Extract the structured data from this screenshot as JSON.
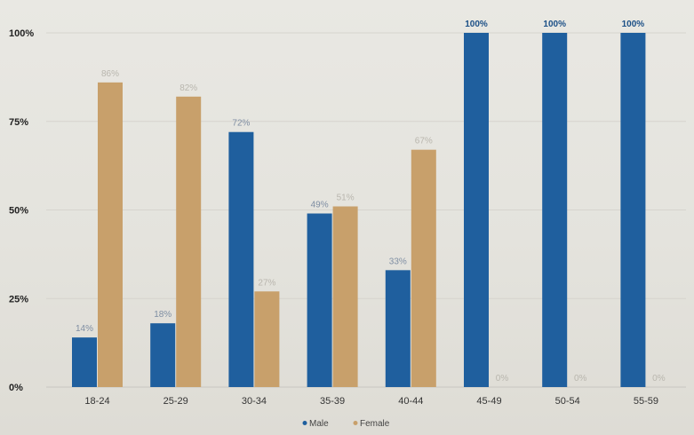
{
  "chart_data": {
    "type": "bar",
    "categories": [
      "18-24",
      "25-29",
      "30-34",
      "35-39",
      "40-44",
      "45-49",
      "50-54",
      "55-59"
    ],
    "series": [
      {
        "name": "Male",
        "values": [
          14,
          18,
          72,
          49,
          33,
          100,
          100,
          100
        ],
        "labels": [
          "14%",
          "18%",
          "72%",
          "49%",
          "33%",
          "100%",
          "100%",
          "100%"
        ],
        "color": "#1f5f9e"
      },
      {
        "name": "Female",
        "values": [
          86,
          82,
          27,
          51,
          67,
          0,
          0,
          0
        ],
        "labels": [
          "86%",
          "82%",
          "27%",
          "51%",
          "67%",
          "0%",
          "0%",
          "0%"
        ],
        "color": "#c8a06b"
      }
    ],
    "y_ticks": [
      "0%",
      "25%",
      "50%",
      "75%",
      "100%"
    ],
    "ylim": [
      0,
      100
    ],
    "grid": true,
    "legend_position": "bottom-center",
    "title": "",
    "xlabel": "",
    "ylabel": ""
  }
}
